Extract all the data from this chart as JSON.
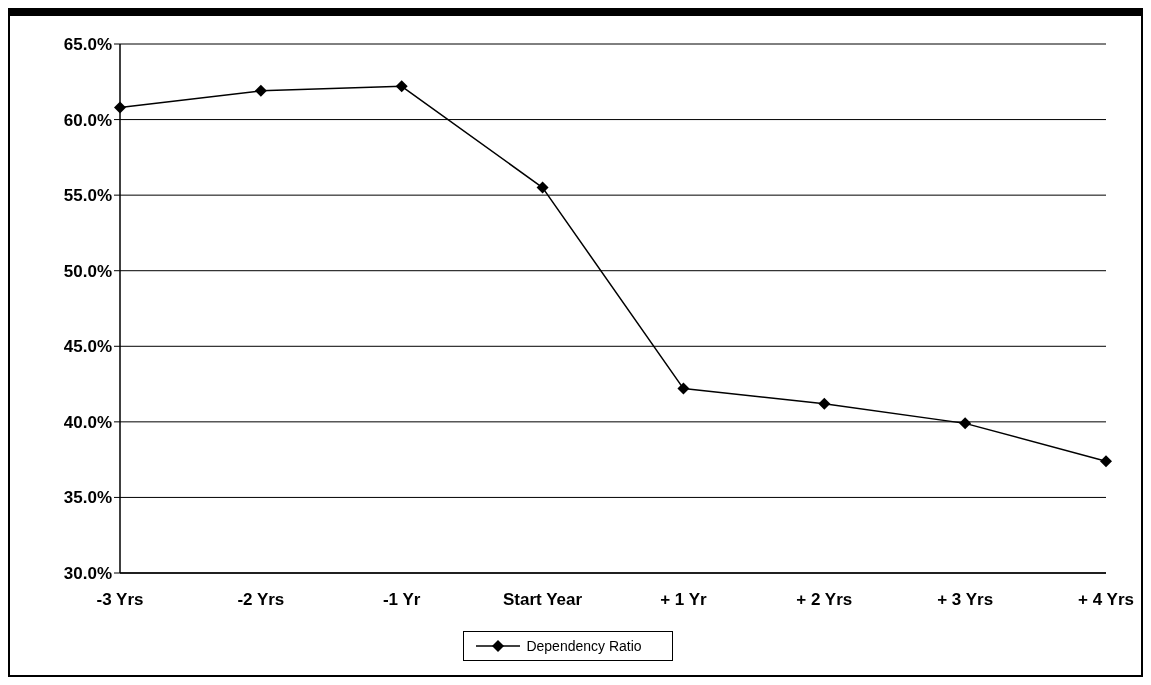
{
  "chart_data": {
    "type": "line",
    "categories": [
      "-3 Yrs",
      "-2 Yrs",
      "-1 Yr",
      "Start Year",
      "+ 1 Yr",
      "+ 2 Yrs",
      "+ 3 Yrs",
      "+ 4 Yrs"
    ],
    "series": [
      {
        "name": "Dependency Ratio",
        "color": "#000000",
        "values": [
          60.8,
          61.9,
          62.2,
          55.5,
          42.2,
          41.2,
          39.9,
          37.4
        ]
      }
    ],
    "ylim": [
      30,
      65
    ],
    "yticks": [
      {
        "value": 30,
        "label": "30.0%"
      },
      {
        "value": 35,
        "label": "35.0%"
      },
      {
        "value": 40,
        "label": "40.0%"
      },
      {
        "value": 45,
        "label": "45.0%"
      },
      {
        "value": 50,
        "label": "50.0%"
      },
      {
        "value": 55,
        "label": "55.0%"
      },
      {
        "value": 60,
        "label": "60.0%"
      },
      {
        "value": 65,
        "label": "65.0%"
      }
    ],
    "grid": "y",
    "legend": "bottom",
    "marker": "diamond",
    "line_style": "solid"
  }
}
